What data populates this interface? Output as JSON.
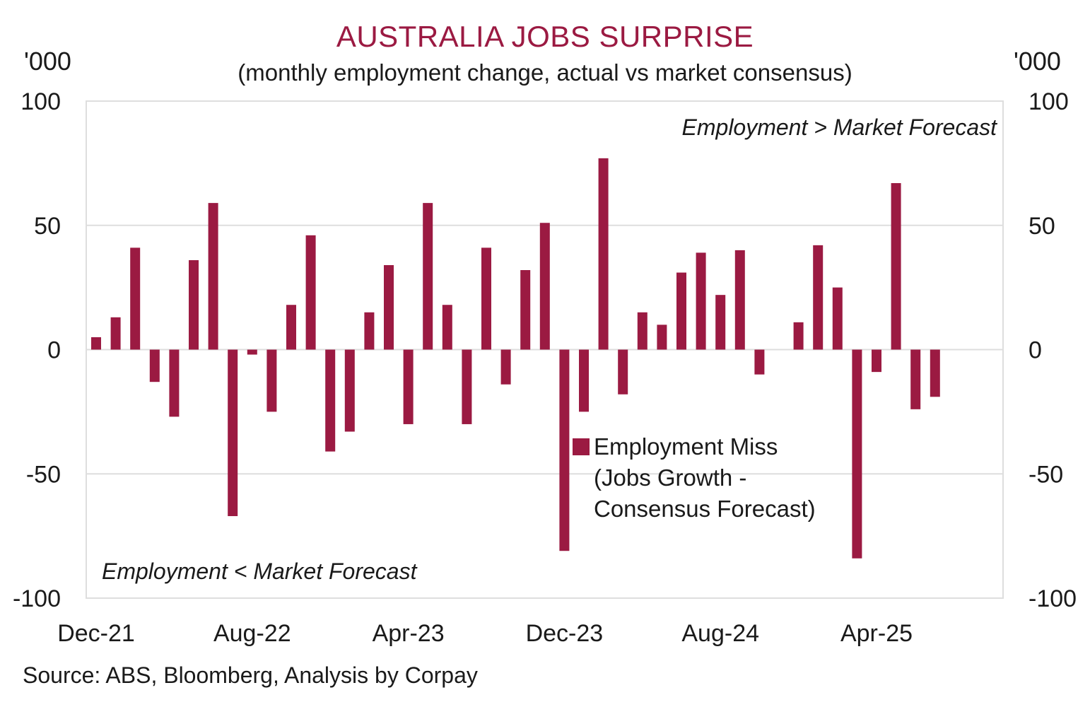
{
  "chart_data": {
    "type": "bar",
    "title": "AUSTRALIA JOBS SURPRISE",
    "subtitle": "(monthly employment change, actual vs market consensus)",
    "y_unit_left": "'000",
    "y_unit_right": "'000",
    "ylim": [
      -100,
      100
    ],
    "yticks": [
      100,
      50,
      0,
      -50,
      -100
    ],
    "xtick_labels": [
      "Dec-21",
      "Aug-22",
      "Apr-23",
      "Dec-23",
      "Aug-24",
      "Apr-25"
    ],
    "xtick_indices": [
      0,
      8,
      16,
      24,
      32,
      40
    ],
    "series": [
      {
        "name": "Employment Miss (Jobs Growth - Consensus Forecast)",
        "color": "#9b1a42",
        "values": [
          5,
          13,
          41,
          -13,
          -27,
          36,
          59,
          -67,
          -2,
          -25,
          18,
          46,
          -41,
          -33,
          15,
          34,
          -30,
          59,
          18,
          -30,
          41,
          -14,
          32,
          51,
          -81,
          -25,
          77,
          -18,
          15,
          10,
          31,
          39,
          22,
          40,
          -10,
          0,
          11,
          42,
          25,
          -84,
          -9,
          67,
          -24,
          -19
        ]
      }
    ],
    "annotations": {
      "above": "Employment > Market Forecast",
      "below": "Employment < Market Forecast"
    },
    "legend": {
      "label_lines": [
        "Employment Miss",
        "(Jobs Growth -",
        "Consensus Forecast)"
      ],
      "placement": "center-right"
    },
    "grid": true
  },
  "source": "Source: ABS, Bloomberg, Analysis by Corpay"
}
